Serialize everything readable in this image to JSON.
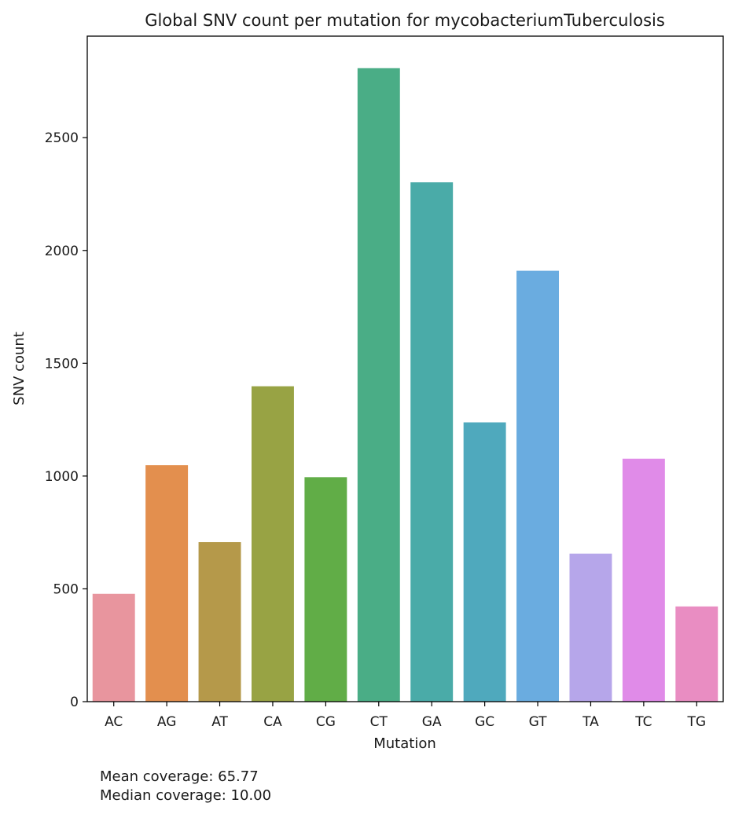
{
  "chart_data": {
    "type": "bar",
    "title": "Global SNV count per mutation for mycobacteriumTuberculosis",
    "xlabel": "Mutation",
    "ylabel": "SNV count",
    "categories": [
      "AC",
      "AG",
      "AT",
      "CA",
      "CG",
      "CT",
      "GA",
      "GC",
      "GT",
      "TA",
      "TC",
      "TG"
    ],
    "values": [
      478,
      1048,
      707,
      1398,
      995,
      2808,
      2302,
      1238,
      1910,
      656,
      1077,
      422
    ],
    "colors": [
      "#e8959e",
      "#e38f4e",
      "#b5994a",
      "#98a344",
      "#61ad47",
      "#4aad86",
      "#4aaba8",
      "#4fa9bd",
      "#6aace0",
      "#b6a6ea",
      "#e08be8",
      "#e98dc2"
    ],
    "yticks": [
      0,
      500,
      1000,
      1500,
      2000,
      2500
    ],
    "ylim": [
      0,
      2950
    ],
    "grid": false,
    "legend": "none"
  },
  "notes": {
    "mean": "Mean coverage: 65.77",
    "median": "Median coverage: 10.00"
  }
}
